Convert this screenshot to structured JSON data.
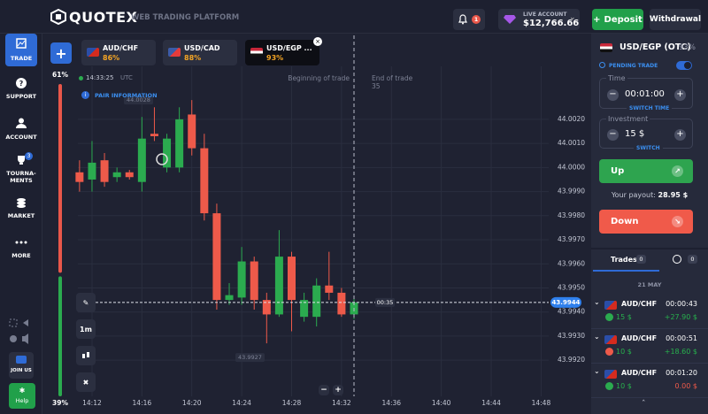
{
  "header": {
    "logo": "QUOTEX",
    "tagline": "WEB TRADING PLATFORM",
    "notifications": "1",
    "account_type": "LIVE ACCOUNT",
    "balance": "$12,766.66",
    "deposit": "Deposit",
    "withdrawal": "Withdrawal"
  },
  "sidebar": {
    "items": [
      {
        "label": "TRADE"
      },
      {
        "label": "SUPPORT"
      },
      {
        "label": "ACCOUNT"
      },
      {
        "label": "TOURNA-\nMENTS",
        "badge": "3"
      },
      {
        "label": "MARKET"
      },
      {
        "label": "MORE"
      }
    ],
    "join": "JOIN US",
    "help": "Help"
  },
  "tabs": [
    {
      "pair": "AUD/CHF",
      "payout": "86%"
    },
    {
      "pair": "USD/CAD",
      "payout": "88%"
    },
    {
      "pair": "USD/EGP ...",
      "payout": "93%"
    }
  ],
  "chart_info": {
    "clock": "14:33:25",
    "timezone": "UTC",
    "pair_info": "PAIR INFORMATION",
    "timeframe": "1m",
    "begin_label": "Beginning of trade",
    "end_label": "End of trade",
    "end_seconds": "35",
    "countdown": "00:35"
  },
  "chart_data": {
    "type": "candlestick",
    "x": [
      851,
      852,
      853,
      854,
      855,
      856,
      857,
      858,
      859,
      860,
      861,
      862,
      863,
      864,
      865,
      866,
      867,
      868,
      869,
      870,
      871,
      872,
      873
    ],
    "open": [
      43.9998,
      43.9995,
      44.0003,
      43.9996,
      43.9998,
      43.9994,
      44.0014,
      44.0,
      44.0,
      44.0022,
      44.0008,
      43.9981,
      43.9945,
      43.9946,
      43.9961,
      43.9945,
      43.9939,
      43.9963,
      43.9938,
      43.9938,
      43.9951,
      43.9948,
      43.9939
    ],
    "high": [
      44.0003,
      44.0011,
      44.0006,
      44.0,
      43.9999,
      44.0021,
      44.0025,
      44.0014,
      44.0025,
      44.0028,
      44.0014,
      43.9985,
      43.9952,
      43.9967,
      43.9963,
      43.9948,
      43.9974,
      43.9965,
      43.9948,
      43.9954,
      43.9965,
      43.995,
      43.9946
    ],
    "low": [
      43.999,
      43.999,
      43.9992,
      43.9994,
      43.9995,
      43.999,
      44.0011,
      43.9998,
      43.9998,
      44.0005,
      43.9978,
      43.9941,
      43.9943,
      43.9943,
      43.9941,
      43.9927,
      43.9938,
      43.9932,
      43.9936,
      43.9934,
      43.9945,
      43.9938,
      43.9937
    ],
    "close": [
      43.9994,
      44.0002,
      43.9994,
      43.9998,
      43.9996,
      44.0012,
      44.0013,
      44.0012,
      44.002,
      44.0008,
      43.9981,
      43.9945,
      43.9947,
      43.9961,
      43.9945,
      43.9939,
      43.9963,
      43.9945,
      43.9945,
      43.9951,
      43.9948,
      43.9939,
      43.9944
    ],
    "up_color": "#2bab4f",
    "down_color": "#ee5a4a",
    "xlim": [
      850.3,
      891.8
    ],
    "xticks": [
      {
        "value": 852,
        "label": "14:12"
      },
      {
        "value": 856,
        "label": "14:16"
      },
      {
        "value": 860,
        "label": "14:20"
      },
      {
        "value": 864,
        "label": "14:24"
      },
      {
        "value": 868,
        "label": "14:28"
      },
      {
        "value": 872,
        "label": "14:32"
      },
      {
        "value": 876,
        "label": "14:36"
      },
      {
        "value": 880,
        "label": "14:40"
      },
      {
        "value": 884,
        "label": "14:44"
      },
      {
        "value": 888,
        "label": "14:48"
      }
    ],
    "ylim": [
      43.9905,
      44.0042
    ],
    "yticks": [
      {
        "value": 43.992,
        "label": "43.9920"
      },
      {
        "value": 43.993,
        "label": "43.9930"
      },
      {
        "value": 43.994,
        "label": "43.9940"
      },
      {
        "value": 43.995,
        "label": "43.9950"
      },
      {
        "value": 43.996,
        "label": "43.9960"
      },
      {
        "value": 43.997,
        "label": "43.9970"
      },
      {
        "value": 43.998,
        "label": "43.9980"
      },
      {
        "value": 43.999,
        "label": "43.9990"
      },
      {
        "value": 44,
        "label": "44.0000"
      },
      {
        "value": 44.001,
        "label": "44.0010"
      },
      {
        "value": 44.002,
        "label": "44.0020"
      }
    ],
    "grid": true,
    "current_price": 43.9944,
    "high_marker": 44.0028,
    "low_marker": 43.9927
  },
  "sentiment": {
    "values": [
      61,
      39
    ],
    "value_labels": [
      "61%",
      "39%"
    ],
    "colors": [
      "#e9574a",
      "#2bab4f"
    ]
  },
  "trade_panel": {
    "pair": "USD/EGP (OTC)",
    "payout": "93%",
    "pending": "PENDING TRADE",
    "time_label": "Time",
    "time": "00:01:00",
    "switch_time": "SWITCH TIME",
    "investment_label": "Investment",
    "investment": "15 $",
    "switch": "SWITCH",
    "up": "Up",
    "payout_label": "Your payout:",
    "payout_value": "28.95 $",
    "down": "Down"
  },
  "trades": {
    "tab": "Trades",
    "count": "0",
    "pending_count": "0",
    "date": "21 MAY",
    "rows": [
      {
        "pair": "AUD/CHF",
        "time": "00:00:43",
        "amount": "15 $",
        "profit": "+27.90 $",
        "direction": "up"
      },
      {
        "pair": "AUD/CHF",
        "time": "00:00:51",
        "amount": "10 $",
        "profit": "+18.60 $",
        "direction": "down"
      },
      {
        "pair": "AUD/CHF",
        "time": "00:01:20",
        "amount": "10 $",
        "profit": "0.00 $",
        "direction": "up"
      }
    ]
  }
}
